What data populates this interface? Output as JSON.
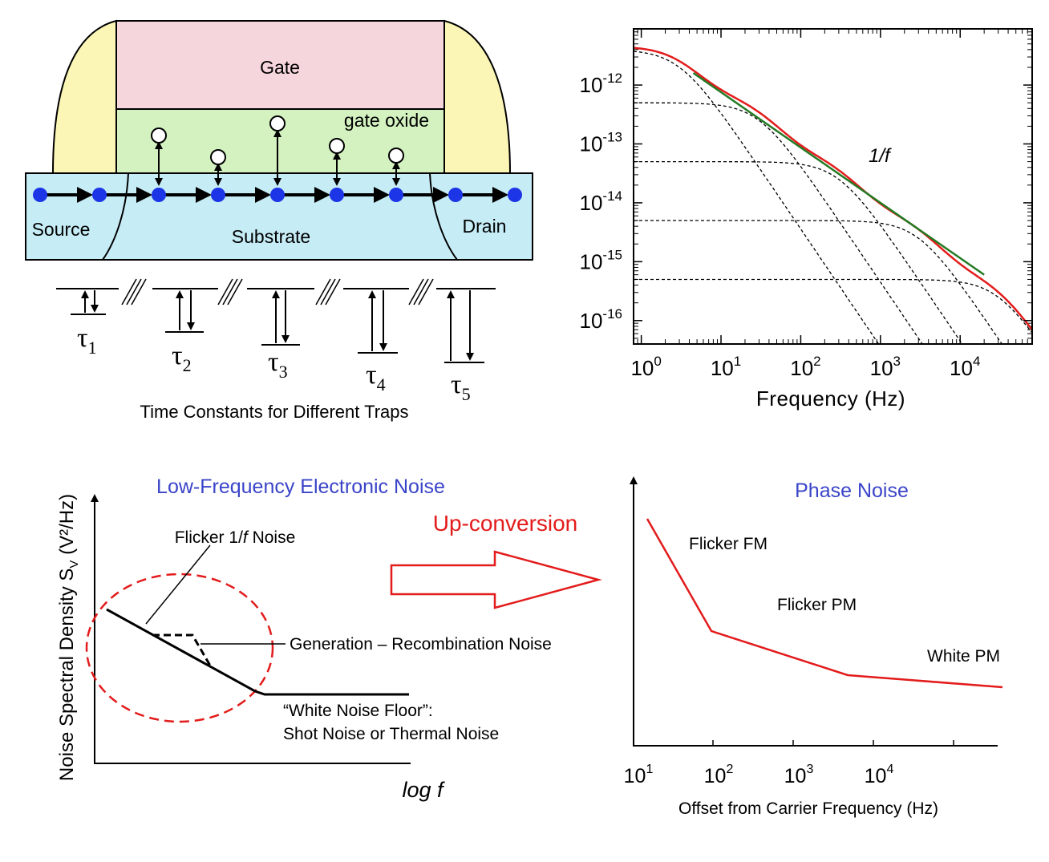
{
  "device": {
    "gate_label": "Gate",
    "oxide_label": "gate oxide",
    "source_label": "Source",
    "drain_label": "Drain",
    "substrate_label": "Substrate",
    "trap_caption": "Time Constants for Different Traps",
    "tau_symbol": "τ",
    "tau_subscripts": [
      "1",
      "2",
      "3",
      "4",
      "5"
    ],
    "colors": {
      "gate": "#f5d6dc",
      "oxide": "#d4f2c0",
      "spacer": "#fbf6b6",
      "substrate": "#c6ecf6",
      "electron": "#1c35e6"
    }
  },
  "chart_data": [
    {
      "type": "line",
      "xscale": "log",
      "yscale": "log",
      "xlabel": "Frequency (Hz)",
      "xlim": [
        0.8,
        80000
      ],
      "ylim": [
        4e-17,
        9e-12
      ],
      "xticks": [
        {
          "base": "10",
          "exp": "0"
        },
        {
          "base": "10",
          "exp": "1"
        },
        {
          "base": "10",
          "exp": "2"
        },
        {
          "base": "10",
          "exp": "3"
        },
        {
          "base": "10",
          "exp": "4"
        }
      ],
      "yticks": [
        {
          "base": "10",
          "exp": "-12"
        },
        {
          "base": "10",
          "exp": "-13"
        },
        {
          "base": "10",
          "exp": "-14"
        },
        {
          "base": "10",
          "exp": "-15"
        },
        {
          "base": "10",
          "exp": "-16"
        }
      ],
      "one_over_f_label": "1/f",
      "lorentzians": [
        {
          "plateau": 4e-12,
          "corner": 3
        },
        {
          "plateau": 5e-13,
          "corner": 30
        },
        {
          "plateau": 5e-14,
          "corner": 300
        },
        {
          "plateau": 5e-15,
          "corner": 3000
        },
        {
          "plateau": 5e-16,
          "corner": 30000
        }
      ],
      "one_over_f_line": {
        "x": [
          4.5,
          20000
        ],
        "y": [
          1.6e-12,
          6e-16
        ]
      },
      "colors": {
        "total": "#e31b1b",
        "reference": "#237a23",
        "components": "#000000"
      }
    },
    {
      "type": "line",
      "title": "Low-Frequency Electronic Noise",
      "ylabel_main": "Noise Spectral Density S",
      "ylabel_sub": "V",
      "ylabel_tail": " (V²/Hz)",
      "xlabel": "log f",
      "annotations": {
        "flicker_prefix": "Flicker 1/",
        "flicker_italic": "f",
        "flicker_suffix": " Noise",
        "gr": "Generation – Recombination Noise",
        "white_line1": "“White Noise Floor”:",
        "white_line2": "Shot Noise or Thermal Noise"
      },
      "colors": {
        "title": "#3a44c8",
        "ellipse": "#e31b1b"
      }
    },
    {
      "type": "line",
      "title": "Phase Noise",
      "xlabel": "Offset from Carrier Frequency (Hz)",
      "xticks": [
        {
          "base": "10",
          "exp": "1"
        },
        {
          "base": "10",
          "exp": "2"
        },
        {
          "base": "10",
          "exp": "3"
        },
        {
          "base": "10",
          "exp": "4"
        }
      ],
      "regions": [
        "Flicker FM",
        "Flicker PM",
        "White PM"
      ],
      "colors": {
        "title": "#3a44c8",
        "line": "#e31b1b"
      }
    }
  ],
  "arrow": {
    "label": "Up-conversion",
    "color": "#e31b1b"
  }
}
